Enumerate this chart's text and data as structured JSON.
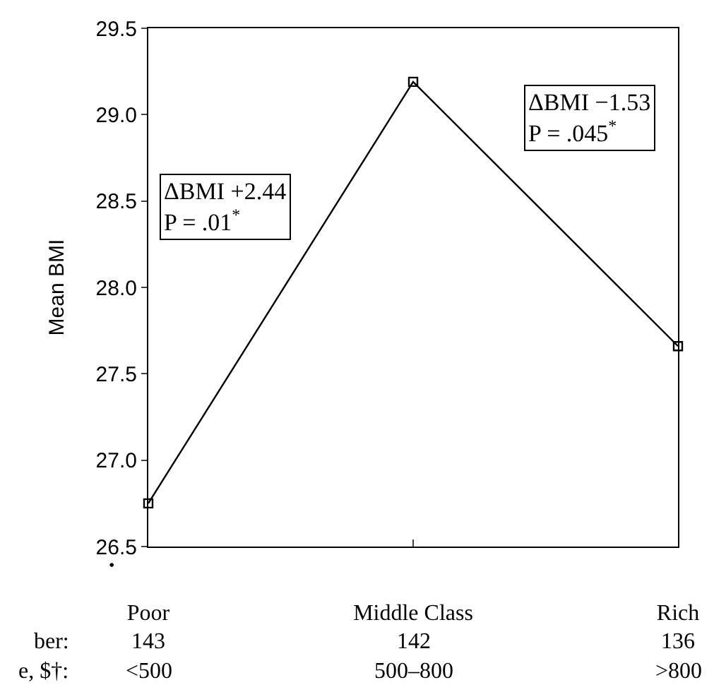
{
  "chart_data": {
    "type": "line",
    "ylabel": "Mean BMI",
    "categories": [
      "Poor",
      "Middle Class",
      "Rich"
    ],
    "series": [
      {
        "color": "#000000",
        "values": [
          26.75,
          29.19,
          27.66
        ]
      }
    ],
    "ylim": [
      26.5,
      29.5
    ],
    "yticks": [
      {
        "value": 26.5,
        "label": "26.5"
      },
      {
        "value": 27,
        "label": "27.0"
      },
      {
        "value": 27.5,
        "label": "27.5"
      },
      {
        "value": 28,
        "label": "28.0"
      },
      {
        "value": 28.5,
        "label": "28.5"
      },
      {
        "value": 29,
        "label": "29.0"
      },
      {
        "value": 29.5,
        "label": "29.5"
      }
    ],
    "marker": "square",
    "line_style": "solid",
    "annotations": [
      "ΔBMI +2.44\nP = .01$^{*}$",
      "ΔBMI −1.53\nP = .045$^{*}$",
      "•",
      "ber:",
      "143",
      "142",
      "136",
      "e, $†:",
      "<500",
      "500–800",
      ">800"
    ]
  }
}
